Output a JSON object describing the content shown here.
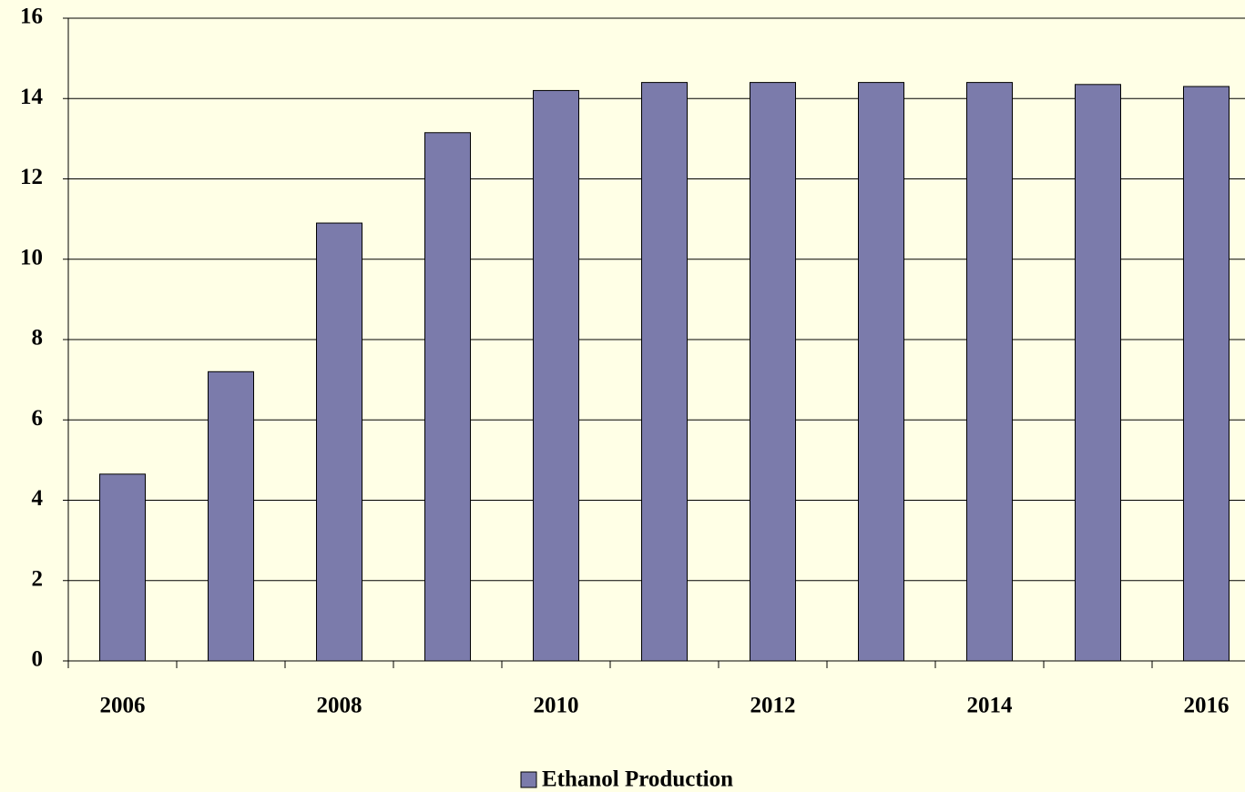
{
  "chart_data": {
    "type": "bar",
    "categories": [
      "2006",
      null,
      "2008",
      null,
      "2010",
      null,
      "2012",
      null,
      "2014",
      null,
      "2016"
    ],
    "series": [
      {
        "name": "Ethanol Production",
        "color": "#7b7bab",
        "values": [
          4.65,
          7.2,
          10.9,
          13.15,
          14.2,
          14.4,
          14.4,
          14.4,
          14.4,
          14.35,
          14.3
        ]
      }
    ],
    "ylim": [
      0,
      16
    ],
    "yticks": [
      0,
      2,
      4,
      6,
      8,
      10,
      12,
      14,
      16
    ],
    "grid": true,
    "legend": "bottom"
  }
}
